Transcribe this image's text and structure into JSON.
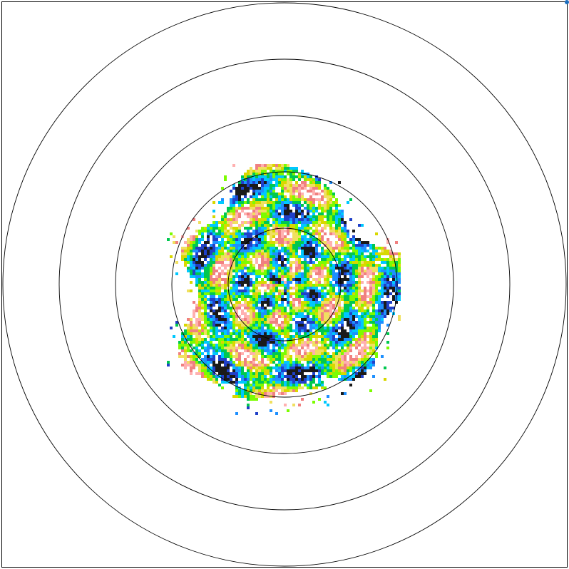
{
  "radar": {
    "type": "ppi-radar-display",
    "range_rings": 5,
    "colors": {
      "background": "#ffffff",
      "frame": "#000000",
      "rings": "#000000",
      "palette": [
        "#1a1a1a",
        "#2040c8",
        "#1e90ff",
        "#00c8ff",
        "#00c850",
        "#7cfc00",
        "#d8d800",
        "#f0e060",
        "#f08080",
        "#ffb0b0",
        "#ffffff"
      ]
    },
    "corner_marker_color": "#1e6fbf"
  }
}
